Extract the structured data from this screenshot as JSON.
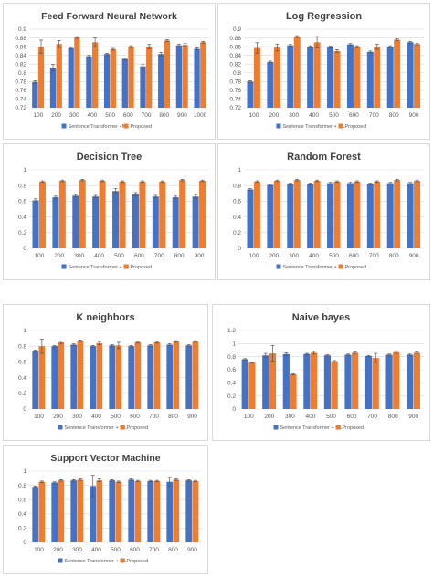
{
  "colors": {
    "baseline": "#4472C4",
    "proposed": "#ED7D31",
    "grid": "#d9d9d9",
    "error_bar": "#555555"
  },
  "chart_data": [
    {
      "type": "bar",
      "title": "Feed Forward Neural Network",
      "categories": [
        "100",
        "200",
        "300",
        "400",
        "500",
        "600",
        "700",
        "800",
        "900",
        "1000"
      ],
      "ylim": [
        0.72,
        0.9
      ],
      "yticks": [
        "0.72",
        "0.74",
        "0.76",
        "0.78",
        "0.8",
        "0.82",
        "0.84",
        "0.86",
        "0.88",
        "0.9"
      ],
      "legend": "bottom",
      "series": [
        {
          "name": "Sentence Transformer +ML",
          "values": [
            0.779,
            0.812,
            0.857,
            0.838,
            0.843,
            0.832,
            0.815,
            0.843,
            0.863,
            0.855
          ],
          "errors": [
            0.003,
            0.007,
            0.002,
            0.002,
            0.002,
            0.002,
            0.005,
            0.004,
            0.003,
            0.002
          ]
        },
        {
          "name": "Proposed",
          "values": [
            0.86,
            0.866,
            0.881,
            0.87,
            0.854,
            0.86,
            0.86,
            0.874,
            0.864,
            0.87
          ],
          "errors": [
            0.015,
            0.008,
            0.002,
            0.01,
            0.002,
            0.002,
            0.005,
            0.002,
            0.003,
            0.002
          ]
        }
      ]
    },
    {
      "type": "bar",
      "title": "Log Regression",
      "categories": [
        "100",
        "200",
        "300",
        "400",
        "500",
        "600",
        "700",
        "800",
        "900"
      ],
      "ylim": [
        0.72,
        0.9
      ],
      "yticks": [
        "0.72",
        "0.74",
        "0.76",
        "0.78",
        "0.8",
        "0.82",
        "0.84",
        "0.86",
        "0.88",
        "0.9"
      ],
      "legend": "bottom",
      "series": [
        {
          "name": "Sentence Transformer + ML",
          "values": [
            0.78,
            0.825,
            0.863,
            0.86,
            0.859,
            0.865,
            0.848,
            0.86,
            0.87
          ],
          "errors": [
            0.002,
            0.002,
            0.002,
            0.002,
            0.002,
            0.002,
            0.002,
            0.002,
            0.002
          ]
        },
        {
          "name": "Proposed",
          "values": [
            0.857,
            0.858,
            0.883,
            0.87,
            0.85,
            0.86,
            0.86,
            0.876,
            0.866
          ],
          "errors": [
            0.012,
            0.008,
            0.002,
            0.013,
            0.003,
            0.002,
            0.006,
            0.002,
            0.002
          ]
        }
      ]
    },
    {
      "type": "bar",
      "title": "Decision Tree",
      "categories": [
        "100",
        "200",
        "300",
        "400",
        "500",
        "600",
        "700",
        "800",
        "900"
      ],
      "ylim": [
        0,
        1
      ],
      "yticks": [
        "0",
        "0.2",
        "0.4",
        "0.6",
        "0.8",
        "1"
      ],
      "legend": "bottom",
      "series": [
        {
          "name": "Sentence Transformer + ML",
          "values": [
            0.61,
            0.65,
            0.67,
            0.66,
            0.73,
            0.69,
            0.66,
            0.65,
            0.66
          ],
          "errors": [
            0.02,
            0.015,
            0.015,
            0.015,
            0.03,
            0.02,
            0.015,
            0.015,
            0.025
          ]
        },
        {
          "name": "Proposed",
          "values": [
            0.85,
            0.86,
            0.87,
            0.86,
            0.85,
            0.85,
            0.85,
            0.87,
            0.86
          ],
          "errors": [
            0.01,
            0.01,
            0.01,
            0.01,
            0.01,
            0.01,
            0.01,
            0.01,
            0.01
          ]
        }
      ]
    },
    {
      "type": "bar",
      "title": "Random Forest",
      "categories": [
        "100",
        "200",
        "300",
        "400",
        "500",
        "600",
        "700",
        "800",
        "900"
      ],
      "ylim": [
        0,
        1
      ],
      "yticks": [
        "0",
        "0.2",
        "0.4",
        "0.6",
        "0.8",
        "1"
      ],
      "legend": "bottom",
      "series": [
        {
          "name": "Sentence Transformer + ML",
          "values": [
            0.75,
            0.81,
            0.82,
            0.82,
            0.83,
            0.83,
            0.82,
            0.83,
            0.83
          ],
          "errors": [
            0.01,
            0.01,
            0.01,
            0.01,
            0.01,
            0.01,
            0.01,
            0.01,
            0.01
          ]
        },
        {
          "name": "Proposed",
          "values": [
            0.85,
            0.86,
            0.87,
            0.86,
            0.85,
            0.85,
            0.85,
            0.87,
            0.86
          ],
          "errors": [
            0.01,
            0.01,
            0.01,
            0.01,
            0.01,
            0.01,
            0.01,
            0.01,
            0.01
          ]
        }
      ]
    },
    {
      "type": "bar",
      "title": "K neighbors",
      "categories": [
        "100",
        "200",
        "300",
        "400",
        "500",
        "600",
        "700",
        "800",
        "900"
      ],
      "ylim": [
        0,
        1
      ],
      "yticks": [
        "0",
        "0.2",
        "0.4",
        "0.6",
        "0.8",
        "1"
      ],
      "legend": "bottom",
      "series": [
        {
          "name": "Sentence Transformer + ML",
          "values": [
            0.74,
            0.8,
            0.82,
            0.8,
            0.81,
            0.8,
            0.81,
            0.82,
            0.81
          ],
          "errors": [
            0.01,
            0.01,
            0.01,
            0.01,
            0.01,
            0.01,
            0.01,
            0.01,
            0.01
          ]
        },
        {
          "name": "Proposed",
          "values": [
            0.8,
            0.85,
            0.87,
            0.84,
            0.81,
            0.85,
            0.85,
            0.86,
            0.86
          ],
          "errors": [
            0.09,
            0.015,
            0.01,
            0.02,
            0.04,
            0.01,
            0.01,
            0.01,
            0.01
          ]
        }
      ]
    },
    {
      "type": "bar",
      "title": "Naive bayes",
      "categories": [
        "100",
        "200",
        "300",
        "400",
        "500",
        "600",
        "700",
        "800",
        "900"
      ],
      "ylim": [
        0,
        1.2
      ],
      "yticks": [
        "0",
        "0.2",
        "0.4",
        "0.6",
        "0.8",
        "1",
        "1.2"
      ],
      "legend": "bottom",
      "series": [
        {
          "name": "Sentence Transformer + ML",
          "values": [
            0.76,
            0.82,
            0.84,
            0.84,
            0.82,
            0.83,
            0.81,
            0.83,
            0.83
          ],
          "errors": [
            0.01,
            0.03,
            0.02,
            0.01,
            0.01,
            0.01,
            0.01,
            0.01,
            0.01
          ]
        },
        {
          "name": "Proposed",
          "values": [
            0.71,
            0.85,
            0.53,
            0.86,
            0.73,
            0.86,
            0.78,
            0.87,
            0.86
          ],
          "errors": [
            0.01,
            0.12,
            0.01,
            0.02,
            0.01,
            0.01,
            0.07,
            0.02,
            0.01
          ]
        }
      ]
    },
    {
      "type": "bar",
      "title": "Support Vector Machine",
      "categories": [
        "100",
        "200",
        "300",
        "400",
        "500",
        "600",
        "700",
        "800",
        "900"
      ],
      "ylim": [
        0,
        1
      ],
      "yticks": [
        "0",
        "0.2",
        "0.4",
        "0.6",
        "0.8",
        "1"
      ],
      "legend": "bottom",
      "series": [
        {
          "name": "Sentence Transformer + ML",
          "values": [
            0.78,
            0.84,
            0.87,
            0.79,
            0.87,
            0.88,
            0.86,
            0.85,
            0.87
          ],
          "errors": [
            0.01,
            0.01,
            0.01,
            0.15,
            0.01,
            0.01,
            0.01,
            0.06,
            0.01
          ]
        },
        {
          "name": "Proposed",
          "values": [
            0.85,
            0.87,
            0.88,
            0.87,
            0.85,
            0.86,
            0.86,
            0.88,
            0.86
          ],
          "errors": [
            0.01,
            0.01,
            0.01,
            0.02,
            0.01,
            0.01,
            0.01,
            0.01,
            0.01
          ]
        }
      ]
    }
  ]
}
